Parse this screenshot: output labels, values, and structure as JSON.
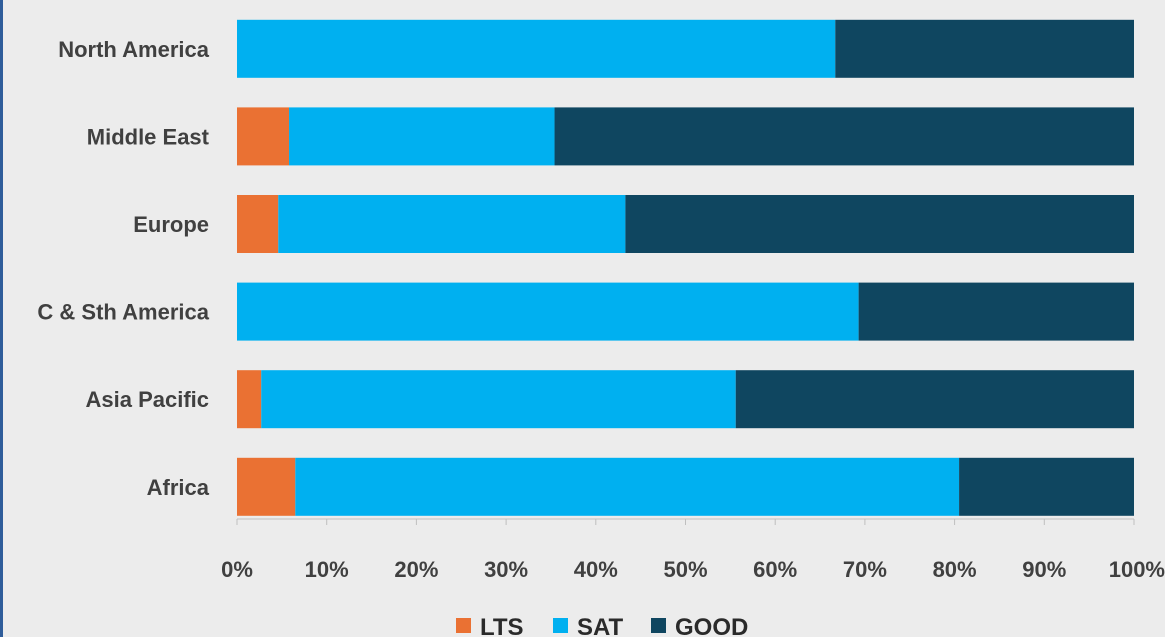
{
  "chart_data": {
    "type": "bar",
    "orientation": "horizontal",
    "stacked": "percent",
    "categories": [
      "North America",
      "Middle East",
      "Europe",
      "C & Sth America",
      "Asia Pacific",
      "Africa"
    ],
    "series": [
      {
        "name": "LTS",
        "color": "#ea7133",
        "values": [
          0,
          5.8,
          4.6,
          0,
          2.7,
          6.5
        ]
      },
      {
        "name": "SAT",
        "color": "#00b0f0",
        "values": [
          66.7,
          29.6,
          38.7,
          69.3,
          52.9,
          74.0
        ]
      },
      {
        "name": "GOOD",
        "color": "#0f4660",
        "values": [
          33.3,
          64.6,
          56.7,
          30.7,
          44.4,
          19.5
        ]
      }
    ],
    "xlim": [
      0,
      100
    ],
    "xticks": [
      "0%",
      "10%",
      "20%",
      "30%",
      "40%",
      "50%",
      "60%",
      "70%",
      "80%",
      "90%",
      "100%"
    ],
    "legend_position": "bottom",
    "grid": false
  }
}
